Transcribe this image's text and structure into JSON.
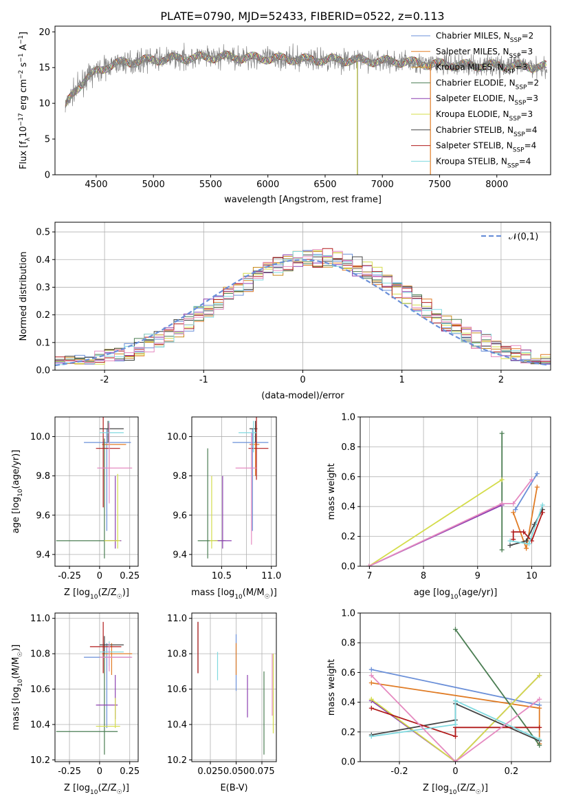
{
  "figure": {
    "title": "PLATE=0790, MJD=52433, FIBERID=0522, z=0.113"
  },
  "chart_data": [
    {
      "id": "spectrum",
      "type": "line",
      "xlabel": "wavelength [Angstrom, rest frame]",
      "ylabel": "Flux [f_λ10^-17 erg cm^-2 s^-1 A^-1]",
      "xlim": [
        4140,
        8470
      ],
      "ylim": [
        0,
        20.8
      ],
      "xticks": [
        4500,
        5000,
        5500,
        6000,
        6500,
        7000,
        7500,
        8000
      ],
      "yticks": [
        0,
        5,
        10,
        15,
        20
      ],
      "grid": false,
      "legend": "right",
      "dip": {
        "x": 6780,
        "x2": 7420
      },
      "legend_entries": [
        {
          "name": "Chabrier MILES, N_SSP=2",
          "color": "#6a8fd8"
        },
        {
          "name": "Salpeter MILES, N_SSP=3",
          "color": "#e07b24"
        },
        {
          "name": "Kroupa MILES, N_SSP=3",
          "color": "#c88a1a"
        },
        {
          "name": "Chabrier ELODIE, N_SSP=2",
          "color": "#4a7d52"
        },
        {
          "name": "Salpeter ELODIE, N_SSP=3",
          "color": "#8b3fb0"
        },
        {
          "name": "Kroupa ELODIE, N_SSP=3",
          "color": "#d4dc4a"
        },
        {
          "name": "Chabrier STELIB, N_SSP=4",
          "color": "#444444"
        },
        {
          "name": "Salpeter STELIB, N_SSP=4",
          "color": "#b01818"
        },
        {
          "name": "Kroupa STELIB, N_SSP=4",
          "color": "#7fd9df"
        }
      ],
      "data_color": "#808080",
      "continuum": {
        "x": [
          4230,
          4300,
          4400,
          4500,
          4600,
          4700,
          4800,
          5000,
          5200,
          5400,
          5600,
          5800,
          6000,
          6200,
          6400,
          6600,
          6800,
          7000,
          7200,
          7400,
          7600,
          7800,
          8000,
          8200,
          8440
        ],
        "y": [
          9.5,
          11.5,
          13.3,
          14.4,
          15.2,
          15.6,
          15.8,
          16.1,
          16.3,
          16.4,
          16.5,
          16.4,
          16.3,
          16.2,
          16.1,
          16.1,
          16.0,
          15.9,
          15.8,
          15.5,
          15.4,
          15.3,
          15.3,
          15.2,
          15.1
        ]
      }
    },
    {
      "id": "residuals",
      "type": "histogram",
      "xlabel": "(data-model)/error",
      "ylabel": "Normed distribution",
      "xlim": [
        -2.5,
        2.5
      ],
      "ylim": [
        0,
        0.535
      ],
      "xticks": [
        -2,
        -1,
        0,
        1,
        2
      ],
      "yticks": [
        0.0,
        0.1,
        0.2,
        0.3,
        0.4,
        0.5
      ],
      "grid": true,
      "legend": "top-right",
      "normal_label": "𝒩(0,1)",
      "normal_color": "#6a8fd8",
      "bin_width": 0.1,
      "colors": [
        "#6a8fd8",
        "#e07b24",
        "#c88a1a",
        "#4a7d52",
        "#8b3fb0",
        "#d4dc4a",
        "#444444",
        "#b01818",
        "#7fd9df",
        "#e58ac0"
      ]
    },
    {
      "id": "age-vs-Z",
      "type": "errorbar",
      "xlabel": "Z [log10(Z/Z☉)]",
      "ylabel": "age  [log10(age/yr)]",
      "xlim": [
        -0.37,
        0.32
      ],
      "ylim": [
        9.34,
        10.1
      ],
      "xticks": [
        -0.25,
        0.0,
        0.25
      ],
      "yticks": [
        9.4,
        9.6,
        9.8,
        10.0
      ],
      "grid": true,
      "points": [
        {
          "x": 0.06,
          "y": 9.97,
          "x0": -0.13,
          "x1": 0.26,
          "y0": 9.52,
          "y1": 10.04,
          "color": "#6a8fd8"
        },
        {
          "x": 0.08,
          "y": 9.96,
          "x0": 0.02,
          "x1": 0.22,
          "y0": 9.8,
          "y1": 10.06,
          "color": "#e07b24"
        },
        {
          "x": 0.04,
          "y": 9.47,
          "x0": -0.36,
          "x1": 0.15,
          "y0": 9.38,
          "y1": 9.99,
          "color": "#4a7d52"
        },
        {
          "x": 0.13,
          "y": 9.47,
          "x0": 0.05,
          "x1": 0.18,
          "y0": 9.43,
          "y1": 9.8,
          "color": "#8b3fb0"
        },
        {
          "x": 0.15,
          "y": 9.47,
          "x0": 0.04,
          "x1": 0.17,
          "y0": 9.43,
          "y1": 9.81,
          "color": "#d4dc4a"
        },
        {
          "x": 0.07,
          "y": 10.04,
          "x0": -0.0,
          "x1": 0.2,
          "y0": 9.97,
          "y1": 10.08,
          "color": "#444444"
        },
        {
          "x": 0.03,
          "y": 9.94,
          "x0": -0.03,
          "x1": 0.17,
          "y0": 9.64,
          "y1": 10.11,
          "color": "#b01818"
        },
        {
          "x": 0.08,
          "y": 10.02,
          "x0": 0.0,
          "x1": 0.2,
          "y0": 9.92,
          "y1": 10.08,
          "color": "#7fd9df"
        },
        {
          "x": 0.08,
          "y": 9.84,
          "x0": -0.02,
          "x1": 0.27,
          "y0": 9.66,
          "y1": 10.07,
          "color": "#e58ac0"
        }
      ]
    },
    {
      "id": "age-vs-mass",
      "type": "errorbar",
      "xlabel": "mass [log10(M/M☉)]",
      "ylabel": "",
      "xlim": [
        10.2,
        11.05
      ],
      "ylim": [
        9.34,
        10.1
      ],
      "xticks": [
        10.5,
        10.75,
        11.0
      ],
      "xticklabels": [
        "10.5",
        "",
        "11.0"
      ],
      "yticks": [
        9.4,
        9.6,
        9.8,
        10.0
      ],
      "grid": true,
      "points": [
        {
          "x": 10.81,
          "y": 9.97,
          "x0": 10.61,
          "x1": 10.97,
          "y0": 9.52,
          "y1": 10.04,
          "color": "#6a8fd8"
        },
        {
          "x": 10.84,
          "y": 9.96,
          "x0": 10.78,
          "x1": 10.88,
          "y0": 9.8,
          "y1": 10.06,
          "color": "#e07b24"
        },
        {
          "x": 10.36,
          "y": 9.47,
          "x0": 10.26,
          "x1": 10.54,
          "y0": 9.38,
          "y1": 9.94,
          "color": "#4a7d52"
        },
        {
          "x": 10.51,
          "y": 9.47,
          "x0": 10.43,
          "x1": 10.6,
          "y0": 9.43,
          "y1": 9.8,
          "color": "#8b3fb0"
        },
        {
          "x": 10.4,
          "y": 9.47,
          "x0": 10.38,
          "x1": 10.46,
          "y0": 9.43,
          "y1": 9.8,
          "color": "#d4dc4a"
        },
        {
          "x": 10.84,
          "y": 10.04,
          "x0": 10.78,
          "x1": 10.86,
          "y0": 9.97,
          "y1": 10.08,
          "color": "#444444"
        },
        {
          "x": 10.85,
          "y": 9.94,
          "x0": 10.77,
          "x1": 10.97,
          "y0": 9.78,
          "y1": 10.11,
          "color": "#b01818"
        },
        {
          "x": 10.82,
          "y": 10.02,
          "x0": 10.67,
          "x1": 10.85,
          "y0": 9.92,
          "y1": 10.08,
          "color": "#7fd9df"
        },
        {
          "x": 10.8,
          "y": 9.84,
          "x0": 10.64,
          "x1": 10.85,
          "y0": 9.45,
          "y1": 10.02,
          "color": "#e58ac0"
        }
      ]
    },
    {
      "id": "massweight-vs-age",
      "type": "line",
      "xlabel": "age  [log10(age/yr)]",
      "ylabel": "mass weight",
      "xlim": [
        6.83,
        10.35
      ],
      "ylim": [
        0,
        1.0
      ],
      "xticks": [
        7,
        8,
        9,
        10
      ],
      "yticks": [
        0.0,
        0.2,
        0.4,
        0.6,
        0.8,
        1.0
      ],
      "grid": true,
      "series": [
        {
          "color": "#6a8fd8",
          "x": [
            9.7,
            10.1
          ],
          "y": [
            0.38,
            0.62
          ]
        },
        {
          "color": "#e07b24",
          "x": [
            9.66,
            9.9,
            10.1
          ],
          "y": [
            0.36,
            0.12,
            0.53
          ]
        },
        {
          "color": "#4a7d52",
          "x": [
            9.45,
            9.45
          ],
          "y": [
            0.11,
            0.89
          ]
        },
        {
          "color": "#8b3fb0",
          "x": [
            6.99,
            9.45
          ],
          "y": [
            0.0,
            0.41
          ]
        },
        {
          "color": "#d4dc4a",
          "x": [
            6.99,
            9.45
          ],
          "y": [
            0.0,
            0.58
          ]
        },
        {
          "color": "#444444",
          "x": [
            9.6,
            9.9,
            10.05,
            10.2
          ],
          "y": [
            0.14,
            0.17,
            0.28,
            0.38
          ]
        },
        {
          "color": "#b01818",
          "x": [
            9.66,
            9.66,
            9.85,
            10.0,
            10.2
          ],
          "y": [
            0.18,
            0.23,
            0.23,
            0.17,
            0.36
          ]
        },
        {
          "color": "#7fd9df",
          "x": [
            9.6,
            9.95,
            10.2
          ],
          "y": [
            0.17,
            0.15,
            0.41
          ]
        },
        {
          "color": "#e58ac0",
          "x": [
            6.99,
            9.45,
            9.66,
            10.0
          ],
          "y": [
            0.0,
            0.42,
            0.42,
            0.58
          ]
        }
      ]
    },
    {
      "id": "mass-vs-Z",
      "type": "errorbar",
      "xlabel": "Z [log10(Z/Z☉)]",
      "ylabel": "mass [log10(M/M☉)]",
      "xlim": [
        -0.37,
        0.32
      ],
      "ylim": [
        10.19,
        11.03
      ],
      "xticks": [
        -0.25,
        0.0,
        0.25
      ],
      "yticks": [
        10.2,
        10.4,
        10.6,
        10.8,
        11.0
      ],
      "grid": true,
      "points": [
        {
          "x": 0.06,
          "y": 10.78,
          "x0": -0.13,
          "x1": 0.26,
          "y0": 10.38,
          "y1": 10.86,
          "color": "#6a8fd8"
        },
        {
          "x": 0.1,
          "y": 10.8,
          "x0": 0.02,
          "x1": 0.27,
          "y0": 10.68,
          "y1": 10.86,
          "color": "#e07b24"
        },
        {
          "x": 0.04,
          "y": 10.36,
          "x0": -0.36,
          "x1": 0.15,
          "y0": 10.23,
          "y1": 10.86,
          "color": "#4a7d52"
        },
        {
          "x": 0.13,
          "y": 10.51,
          "x0": -0.03,
          "x1": 0.15,
          "y0": 10.43,
          "y1": 10.68,
          "color": "#8b3fb0"
        },
        {
          "x": 0.13,
          "y": 10.39,
          "x0": -0.03,
          "x1": 0.17,
          "y0": 10.38,
          "y1": 10.55,
          "color": "#d4dc4a"
        },
        {
          "x": 0.04,
          "y": 10.85,
          "x0": -0.0,
          "x1": 0.2,
          "y0": 10.8,
          "y1": 10.9,
          "color": "#444444"
        },
        {
          "x": 0.03,
          "y": 10.84,
          "x0": -0.08,
          "x1": 0.18,
          "y0": 10.69,
          "y1": 10.98,
          "color": "#b01818"
        },
        {
          "x": 0.08,
          "y": 10.81,
          "x0": 0.0,
          "x1": 0.2,
          "y0": 10.73,
          "y1": 10.87,
          "color": "#7fd9df"
        },
        {
          "x": 0.08,
          "y": 10.78,
          "x0": -0.0,
          "x1": 0.27,
          "y0": 10.7,
          "y1": 10.86,
          "color": "#e58ac0"
        }
      ]
    },
    {
      "id": "mass-vs-EBV",
      "type": "errorbar",
      "xlabel": "E(B-V)",
      "ylabel": "",
      "xlim": [
        0.007,
        0.089
      ],
      "ylim": [
        10.19,
        11.03
      ],
      "xticks": [
        0.025,
        0.05,
        0.075
      ],
      "xticklabels": [
        "0.025",
        "0.050",
        "0.075"
      ],
      "yticks": [
        10.2,
        10.4,
        10.6,
        10.8,
        11.0
      ],
      "grid": true,
      "points": [
        {
          "x": 0.05,
          "y": 10.74,
          "y0": 10.59,
          "y1": 10.91,
          "color": "#6a8fd8"
        },
        {
          "x": 0.05,
          "y": 10.8,
          "y0": 10.68,
          "y1": 10.86,
          "color": "#e07b24"
        },
        {
          "x": 0.077,
          "y": 10.45,
          "y0": 10.23,
          "y1": 10.7,
          "color": "#4a7d52"
        },
        {
          "x": 0.061,
          "y": 10.54,
          "y0": 10.44,
          "y1": 10.68,
          "color": "#8b3fb0"
        },
        {
          "x": 0.086,
          "y": 10.55,
          "y0": 10.35,
          "y1": 10.8,
          "color": "#d4dc4a"
        },
        {
          "x": 0.013,
          "y": 10.8,
          "y0": 10.69,
          "y1": 10.98,
          "color": "#444444"
        },
        {
          "x": 0.013,
          "y": 10.86,
          "y0": 10.69,
          "y1": 10.98,
          "color": "#b01818"
        },
        {
          "x": 0.032,
          "y": 10.72,
          "y0": 10.65,
          "y1": 10.81,
          "color": "#7fd9df"
        },
        {
          "x": 0.085,
          "y": 10.65,
          "y0": 10.45,
          "y1": 10.8,
          "color": "#e58ac0"
        }
      ]
    },
    {
      "id": "massweight-vs-Z",
      "type": "line",
      "xlabel": "Z [log10(Z/Z☉)]",
      "ylabel": "mass weight",
      "xlim": [
        -0.34,
        0.34
      ],
      "ylim": [
        0,
        1.0
      ],
      "xticks": [
        -0.2,
        0.0,
        0.2
      ],
      "yticks": [
        0.0,
        0.2,
        0.4,
        0.6,
        0.8,
        1.0
      ],
      "grid": true,
      "series": [
        {
          "color": "#6a8fd8",
          "x": [
            -0.3,
            0.3
          ],
          "y": [
            0.62,
            0.38
          ]
        },
        {
          "color": "#e07b24",
          "x": [
            -0.3,
            0.3,
            0.3
          ],
          "y": [
            0.53,
            0.36,
            0.12
          ]
        },
        {
          "color": "#4a7d52",
          "x": [
            0.0,
            0.3
          ],
          "y": [
            0.89,
            0.11
          ]
        },
        {
          "color": "#8b3fb0",
          "x": [
            -0.3,
            0.0,
            0.3
          ],
          "y": [
            0.41,
            0.0,
            0.58
          ]
        },
        {
          "color": "#d4dc4a",
          "x": [
            -0.3,
            0.0,
            0.3
          ],
          "y": [
            0.42,
            0.0,
            0.58
          ]
        },
        {
          "color": "#444444",
          "x": [
            -0.3,
            0.0,
            0.0,
            0.3
          ],
          "y": [
            0.18,
            0.28,
            0.39,
            0.14
          ]
        },
        {
          "color": "#b01818",
          "x": [
            -0.3,
            0.0,
            0.0,
            0.3
          ],
          "y": [
            0.36,
            0.17,
            0.23,
            0.23
          ]
        },
        {
          "color": "#7fd9df",
          "x": [
            -0.3,
            0.0,
            0.0,
            0.3
          ],
          "y": [
            0.17,
            0.25,
            0.41,
            0.15
          ]
        },
        {
          "color": "#e58ac0",
          "x": [
            -0.3,
            0.0,
            0.3
          ],
          "y": [
            0.58,
            0.0,
            0.42
          ]
        }
      ]
    }
  ]
}
